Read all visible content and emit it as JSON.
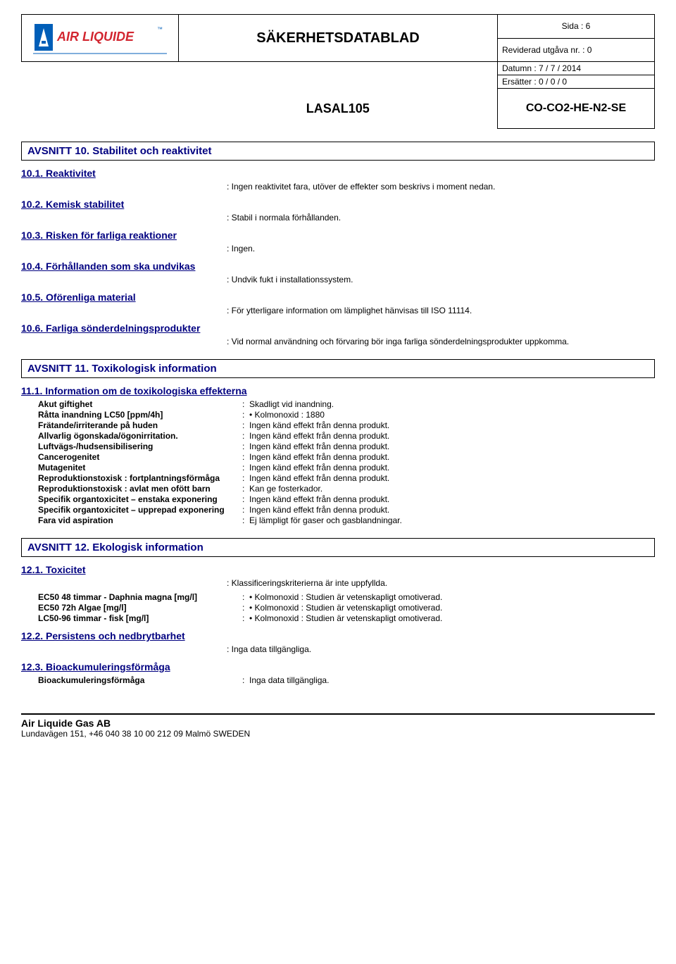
{
  "header": {
    "doc_title": "SÄKERHETSDATABLAD",
    "page": "Sida : 6",
    "revision": "Reviderad utgåva nr. : 0",
    "date": "Datumn : 7 / 7 / 2014",
    "replaces": "Ersätter : 0 / 0 / 0",
    "product_name": "LASAL105",
    "product_code": "CO-CO2-HE-N2-SE",
    "logo": {
      "text": "AIR LIQUIDE",
      "text_color": "#d22630",
      "mark_bg": "#005eb8",
      "mark_fg": "#ffffff",
      "tm_color": "#005eb8"
    }
  },
  "s10": {
    "title": "AVSNITT 10.  Stabilitet och reaktivitet",
    "h1": "10.1.  Reaktivitet",
    "v1": "Ingen reaktivitet fara, utöver de effekter som beskrivs i moment nedan.",
    "h2": "10.2.  Kemisk stabilitet",
    "v2": "Stabil i normala förhållanden.",
    "h3": "10.3.  Risken för farliga reaktioner",
    "v3": "Ingen.",
    "h4": "10.4.  Förhållanden som ska undvikas",
    "v4": "Undvik fukt i installationssystem.",
    "h5": "10.5.  Oförenliga material",
    "v5": "För ytterligare information om lämplighet hänvisas till ISO 11114.",
    "h6": "10.6.  Farliga sönderdelningsprodukter",
    "v6": "Vid normal användning och förvaring bör inga farliga sönderdelningsprodukter uppkomma."
  },
  "s11": {
    "title": "AVSNITT 11.  Toxikologisk information",
    "h1": "11.1.  Information om de toxikologiska effekterna",
    "rows": [
      {
        "k": "Akut giftighet",
        "v": "Skadligt vid inandning."
      },
      {
        "k": "Råtta inandning LC50  [ppm/4h]",
        "v": "• Kolmonoxid : 1880"
      },
      {
        "k": "Frätande/irriterande på huden",
        "v": "Ingen känd effekt från denna produkt."
      },
      {
        "k": "Allvarlig ögonskada/ögonirritation.",
        "v": "Ingen känd effekt från denna produkt."
      },
      {
        "k": "Luftvägs-/hudsensibilisering",
        "v": "Ingen känd effekt från denna produkt."
      },
      {
        "k": "Cancerogenitet",
        "v": "Ingen känd effekt från denna produkt."
      },
      {
        "k": "Mutagenitet",
        "v": "Ingen känd effekt från denna produkt."
      },
      {
        "k": "Reproduktionstoxisk : fortplantningsförmåga",
        "v": "Ingen känd effekt från denna produkt."
      },
      {
        "k": "Reproduktionstoxisk : avlat men ofött barn",
        "v": "Kan ge fosterkador."
      },
      {
        "k": "Specifik organtoxicitet – enstaka exponering",
        "v": "Ingen känd effekt från denna produkt."
      },
      {
        "k": "Specifik organtoxicitet – upprepad exponering",
        "v": "Ingen känd effekt från denna produkt."
      },
      {
        "k": "Fara vid aspiration",
        "v": "Ej lämpligt för gaser och gasblandningar."
      }
    ]
  },
  "s12": {
    "title": "AVSNITT 12.  Ekologisk information",
    "h1": "12.1.  Toxicitet",
    "v1": "Klassificeringskriterierna är inte uppfyllda.",
    "rows": [
      {
        "k": "EC50 48 timmar - Daphnia magna [mg/l]",
        "v": "• Kolmonoxid : Studien är vetenskapligt omotiverad."
      },
      {
        "k": "EC50 72h Algae [mg/l]",
        "v": "• Kolmonoxid : Studien är vetenskapligt omotiverad."
      },
      {
        "k": "LC50-96 timmar - fisk [mg/l]",
        "v": "• Kolmonoxid : Studien är vetenskapligt omotiverad."
      }
    ],
    "h2": "12.2.  Persistens och nedbrytbarhet",
    "v2": "Inga data tillgängliga.",
    "h3": "12.3.  Bioackumuleringsförmåga",
    "rows3": [
      {
        "k": "Bioackumuleringsförmåga",
        "v": "Inga data tillgängliga."
      }
    ]
  },
  "footer": {
    "company": "Air Liquide Gas AB",
    "address": "Lundavägen 151, +46 040 38 10 00  212 09  Malmö  SWEDEN"
  }
}
